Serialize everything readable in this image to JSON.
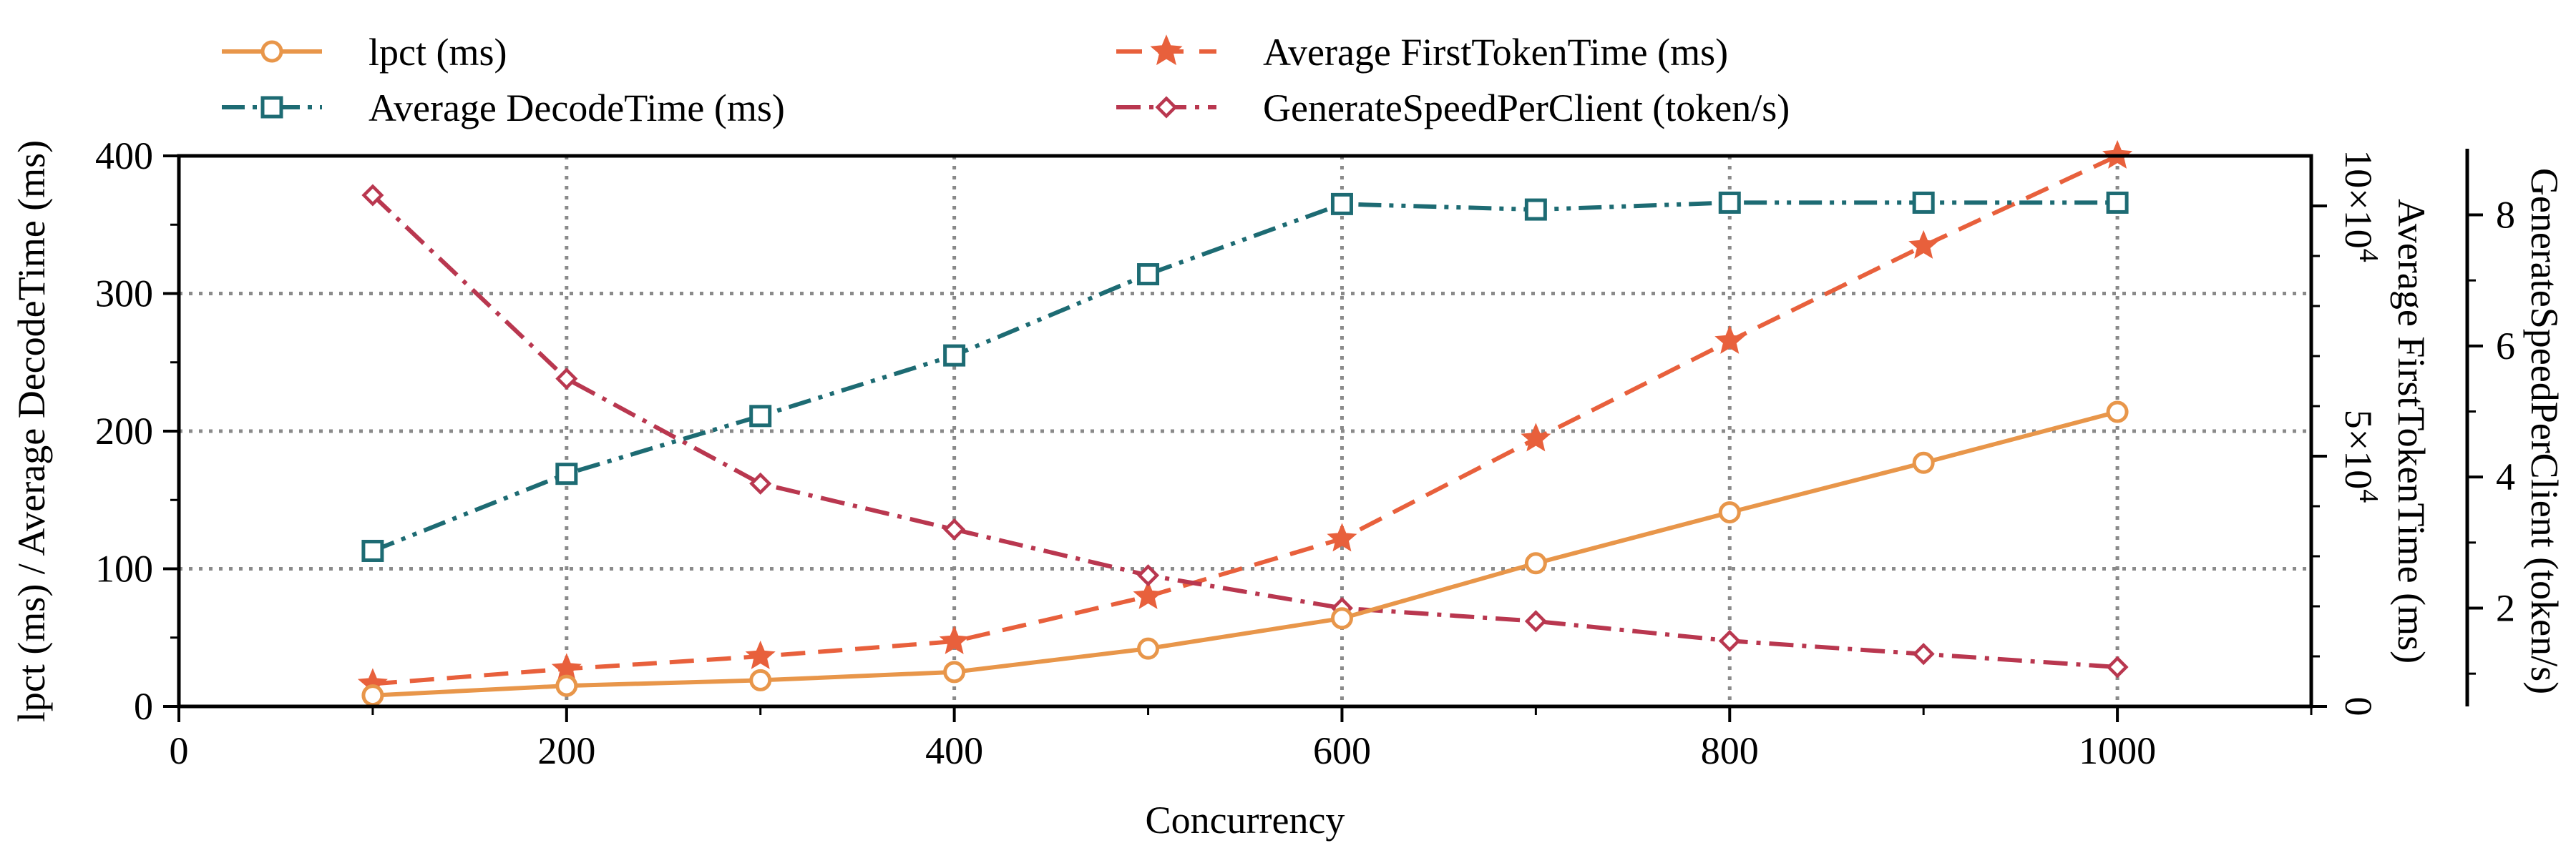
{
  "chart_data": {
    "type": "line",
    "xlabel": "Concurrency",
    "x_ticks": [
      "0",
      "200",
      "400",
      "600",
      "800",
      "1000"
    ],
    "xlim": [
      0,
      1100
    ],
    "x": [
      100,
      200,
      300,
      400,
      500,
      600,
      700,
      800,
      900,
      1000
    ],
    "grid": "dotted, at x = 200..1000 and left-axis y = 100, 200, 300",
    "legend_position": "top, above plot, two columns",
    "axes": {
      "left": {
        "label": "lpct (ms) / Average DecodeTime (ms)",
        "ylim": [
          0,
          400
        ],
        "ticks": [
          "0",
          "100",
          "200",
          "300",
          "400"
        ]
      },
      "right1": {
        "label": "Average FirstTokenTime (ms)",
        "ylim": [
          0,
          110000
        ],
        "ticks": [
          "0",
          "5×10",
          "10×10"
        ],
        "tick_exponent": "4"
      },
      "right2": {
        "label": "GenerateSpeedPerClient (token/s)",
        "ylim": [
          0.5,
          8.9
        ],
        "ticks": [
          "2",
          "4",
          "6",
          "8"
        ]
      }
    },
    "series": [
      {
        "name": "lpct (ms)",
        "axis": "left",
        "color": "#E8964A",
        "marker": "circle",
        "linestyle": "solid",
        "values": [
          8,
          15,
          19,
          25,
          42,
          64,
          104,
          141,
          177,
          214
        ]
      },
      {
        "name": "Average DecodeTime (ms)",
        "axis": "left",
        "color": "#1D6B73",
        "marker": "square",
        "linestyle": "dash-dot-dot",
        "values": [
          113,
          169,
          211,
          255,
          314,
          365,
          361,
          366,
          366,
          366
        ]
      },
      {
        "name": "Average FirstTokenTime (ms)",
        "axis": "right1",
        "color": "#E8603C",
        "marker": "star",
        "linestyle": "dashed",
        "values": [
          4500,
          7500,
          10000,
          13000,
          22000,
          33500,
          53500,
          73000,
          92000,
          110000
        ]
      },
      {
        "name": "GenerateSpeedPerClient (token/s)",
        "axis": "right2",
        "color": "#B9374F",
        "marker": "diamond",
        "linestyle": "dash-dot",
        "values": [
          8.3,
          5.5,
          3.9,
          3.2,
          2.5,
          2.0,
          1.8,
          1.5,
          1.3,
          1.1
        ]
      }
    ]
  }
}
